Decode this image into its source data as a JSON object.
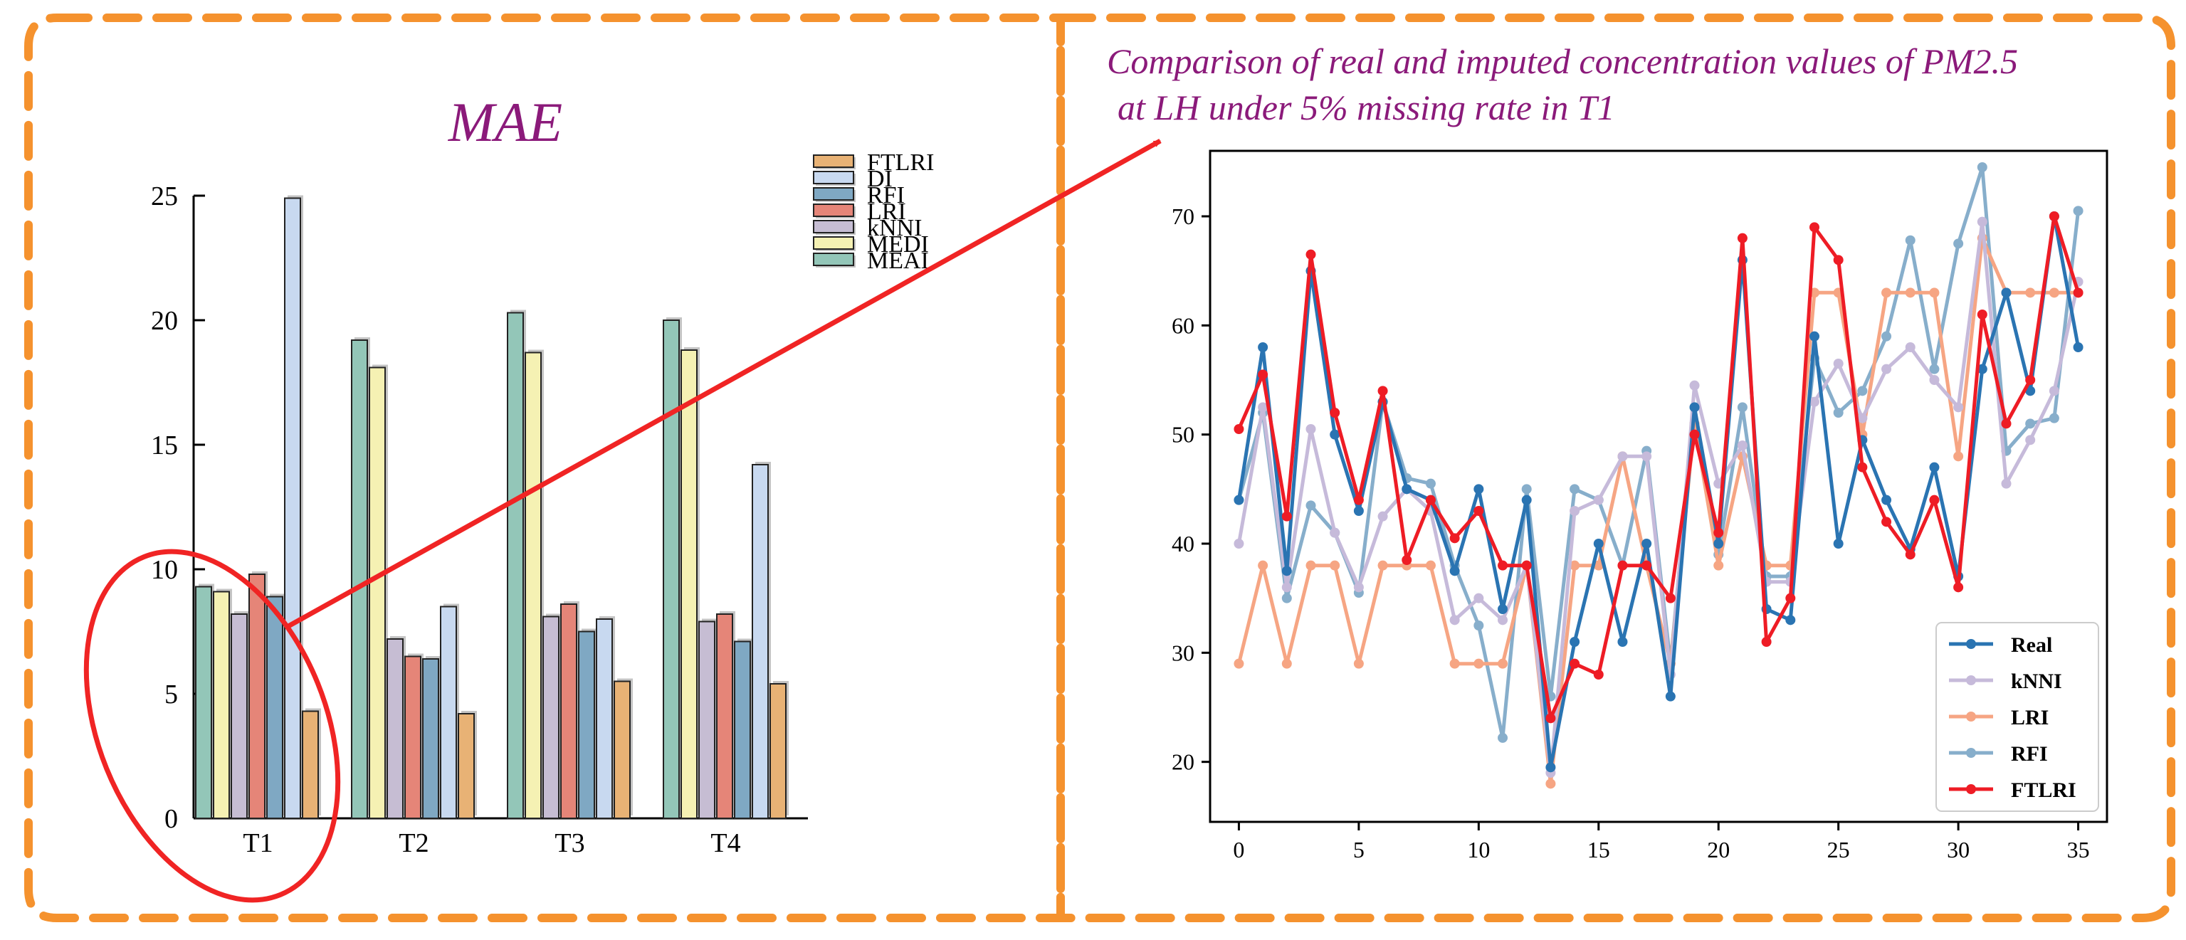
{
  "colors": {
    "frame": "#F5922E",
    "title": "#8B1A7A",
    "arrow": "#F02424",
    "ellipse": "#F02424"
  },
  "chart_data": [
    {
      "type": "bar",
      "title": "MAE",
      "categories": [
        "T1",
        "T2",
        "T3",
        "T4"
      ],
      "ylim": [
        0,
        25
      ],
      "yticks": [
        0,
        5,
        10,
        15,
        20,
        25
      ],
      "legend_position": "top-right",
      "legend_order": [
        "FTLRI",
        "DI",
        "RFI",
        "LRI",
        "kNNI",
        "MEDI",
        "MEAI"
      ],
      "series": [
        {
          "name": "MEAI",
          "color": "#93C6B8",
          "values": [
            9.3,
            19.2,
            20.3,
            20.0
          ]
        },
        {
          "name": "MEDI",
          "color": "#F5F1B3",
          "values": [
            9.1,
            18.1,
            18.7,
            18.8
          ]
        },
        {
          "name": "kNNI",
          "color": "#C6BDD3",
          "values": [
            8.2,
            7.2,
            8.1,
            7.9
          ]
        },
        {
          "name": "LRI",
          "color": "#E58578",
          "values": [
            9.8,
            6.5,
            8.6,
            8.2
          ]
        },
        {
          "name": "RFI",
          "color": "#7FA8C3",
          "values": [
            8.9,
            6.4,
            7.5,
            7.1
          ]
        },
        {
          "name": "DI",
          "color": "#C8D9F0",
          "values": [
            24.9,
            8.5,
            8.0,
            14.2
          ]
        },
        {
          "name": "FTLRI",
          "color": "#E8B275",
          "values": [
            4.3,
            4.2,
            5.5,
            5.4
          ]
        }
      ]
    },
    {
      "type": "line",
      "title_line1": "Comparison of real and imputed concentration values of PM2.5",
      "title_line2": "at LH under 5% missing rate in T1",
      "xlim": [
        -1.2,
        36.2
      ],
      "ylim": [
        14.5,
        76
      ],
      "xticks": [
        0,
        5,
        10,
        15,
        20,
        25,
        30,
        35
      ],
      "yticks": [
        20,
        30,
        40,
        50,
        60,
        70
      ],
      "legend_position": "lower-right",
      "x": [
        0,
        1,
        2,
        3,
        4,
        5,
        6,
        7,
        8,
        9,
        10,
        11,
        12,
        13,
        14,
        15,
        16,
        17,
        18,
        19,
        20,
        21,
        22,
        23,
        24,
        25,
        26,
        27,
        28,
        29,
        30,
        31,
        32,
        33,
        34,
        35
      ],
      "series": [
        {
          "name": "RFI",
          "color": "#87AECB",
          "values": [
            44,
            52,
            35,
            43.5,
            41,
            35.5,
            53,
            46,
            45.5,
            38,
            32.5,
            22.2,
            45,
            26,
            45,
            44,
            38,
            48.5,
            29,
            52.5,
            39,
            52.5,
            37,
            37,
            57,
            52,
            54,
            59,
            67.8,
            56,
            67.5,
            74.5,
            48.5,
            51,
            51.5,
            70.5
          ]
        },
        {
          "name": "LRI",
          "color": "#F6A583",
          "values": [
            29,
            38,
            29,
            38,
            38,
            29,
            38,
            38,
            38,
            29,
            29,
            29,
            38,
            18,
            38,
            38,
            48,
            38,
            29,
            51,
            38,
            48,
            38,
            38,
            63,
            63,
            50,
            63,
            63,
            63,
            48,
            68,
            63,
            63,
            63,
            63
          ]
        },
        {
          "name": "kNNI",
          "color": "#C6BADA",
          "values": [
            40,
            52.5,
            36,
            50.5,
            41,
            36,
            42.5,
            45,
            43,
            33,
            35,
            33,
            38,
            19,
            43,
            44,
            48,
            48,
            28,
            54.5,
            45.5,
            49,
            36.5,
            36.5,
            53,
            56.5,
            51.5,
            56,
            58,
            55,
            52.5,
            69.5,
            45.5,
            49.5,
            54,
            64
          ]
        },
        {
          "name": "Real",
          "color": "#2A74B2",
          "values": [
            44,
            58,
            37.5,
            65,
            50,
            43,
            53,
            45,
            44,
            37.5,
            45,
            34,
            44,
            19.5,
            31,
            40,
            31,
            40,
            26,
            52.5,
            40,
            66,
            34,
            33,
            59,
            40,
            49.5,
            44,
            39.5,
            47,
            37,
            56,
            63,
            54,
            70,
            58
          ]
        },
        {
          "name": "FTLRI",
          "color": "#EE1C25",
          "values": [
            50.5,
            55.5,
            42.5,
            66.5,
            52,
            44,
            54,
            38.5,
            44,
            40.5,
            43,
            38,
            38,
            24,
            29,
            28,
            38,
            38,
            35,
            50,
            41,
            68,
            31,
            35,
            69,
            66,
            47,
            42,
            39,
            44,
            36,
            61,
            51,
            55,
            70,
            63
          ]
        }
      ]
    }
  ]
}
